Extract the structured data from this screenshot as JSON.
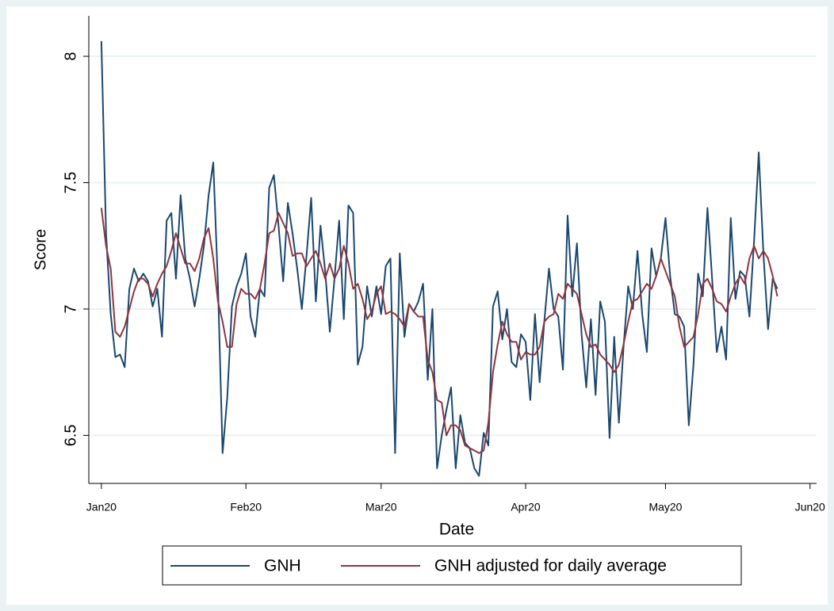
{
  "chart_data": {
    "type": "line",
    "x_label": "Date",
    "y_label": "Score",
    "x": [
      0,
      1,
      2,
      3,
      4,
      5,
      6,
      7,
      8,
      9,
      10,
      11,
      12,
      13,
      14,
      15,
      16,
      17,
      18,
      19,
      20,
      21,
      22,
      23,
      24,
      25,
      26,
      27,
      28,
      29,
      30,
      31,
      32,
      33,
      34,
      35,
      36,
      37,
      38,
      39,
      40,
      41,
      42,
      43,
      44,
      45,
      46,
      47,
      48,
      49,
      50,
      51,
      52,
      53,
      54,
      55,
      56,
      57,
      58,
      59,
      60,
      61,
      62,
      63,
      64,
      65,
      66,
      67,
      68,
      69,
      70,
      71,
      72,
      73,
      74,
      75,
      76,
      77,
      78,
      79,
      80,
      81,
      82,
      83,
      84,
      85,
      86,
      87,
      88,
      89,
      90,
      91,
      92,
      93,
      94,
      95,
      96,
      97,
      98,
      99,
      100,
      101,
      102,
      103,
      104,
      105,
      106,
      107,
      108,
      109,
      110,
      111,
      112,
      113,
      114,
      115,
      116,
      117,
      118,
      119,
      120,
      121,
      122,
      123,
      124,
      125,
      126,
      127,
      128,
      129,
      130,
      131,
      132,
      133,
      134,
      135,
      136,
      137,
      138,
      139,
      140,
      141,
      142,
      143,
      144,
      145
    ],
    "series": [
      {
        "name": "GNH",
        "color": "#1a476f",
        "values": [
          8.06,
          7.3,
          6.98,
          6.81,
          6.82,
          6.77,
          7.08,
          7.16,
          7.11,
          7.14,
          7.11,
          7.01,
          7.08,
          6.89,
          7.35,
          7.38,
          7.12,
          7.45,
          7.2,
          7.12,
          7.01,
          7.12,
          7.25,
          7.45,
          7.58,
          7.1,
          6.43,
          6.65,
          7.01,
          7.09,
          7.14,
          7.22,
          6.97,
          6.89,
          7.08,
          7.05,
          7.48,
          7.53,
          7.33,
          7.11,
          7.42,
          7.3,
          7.16,
          7.0,
          7.21,
          7.44,
          7.03,
          7.33,
          7.15,
          6.91,
          7.12,
          7.35,
          6.96,
          7.41,
          7.38,
          6.78,
          6.85,
          7.09,
          6.97,
          7.09,
          6.98,
          7.17,
          7.2,
          6.43,
          7.22,
          6.89,
          7.02,
          6.99,
          7.03,
          7.1,
          6.72,
          7.0,
          6.37,
          6.5,
          6.6,
          6.69,
          6.37,
          6.58,
          6.47,
          6.45,
          6.37,
          6.34,
          6.51,
          6.46,
          7.01,
          7.07,
          6.88,
          7.0,
          6.79,
          6.77,
          6.9,
          6.87,
          6.64,
          6.98,
          6.71,
          6.95,
          7.16,
          7.0,
          6.97,
          6.76,
          7.37,
          7.05,
          7.26,
          6.9,
          6.69,
          6.96,
          6.66,
          7.03,
          6.95,
          6.49,
          6.89,
          6.55,
          6.85,
          7.09,
          7.0,
          7.23,
          6.98,
          6.83,
          7.24,
          7.13,
          7.2,
          7.36,
          7.13,
          6.98,
          6.97,
          6.93,
          6.54,
          6.78,
          7.14,
          7.05,
          7.4,
          7.12,
          6.83,
          6.93,
          6.8,
          7.36,
          7.04,
          7.15,
          7.13,
          6.97,
          7.27,
          7.62,
          7.22,
          6.92,
          7.12,
          7.08
        ]
      },
      {
        "name": "GNH adjusted for daily average",
        "color": "#90353b",
        "values": [
          7.4,
          7.25,
          7.16,
          6.91,
          6.89,
          6.93,
          7.0,
          7.07,
          7.12,
          7.12,
          7.1,
          7.05,
          7.1,
          7.14,
          7.17,
          7.23,
          7.3,
          7.24,
          7.18,
          7.18,
          7.15,
          7.2,
          7.28,
          7.32,
          7.2,
          7.03,
          6.95,
          6.85,
          6.85,
          7.02,
          7.08,
          7.06,
          7.06,
          7.04,
          7.08,
          7.18,
          7.3,
          7.31,
          7.38,
          7.34,
          7.3,
          7.21,
          7.22,
          7.22,
          7.17,
          7.2,
          7.23,
          7.18,
          7.12,
          7.18,
          7.12,
          7.16,
          7.25,
          7.18,
          7.08,
          7.1,
          7.04,
          6.96,
          6.99,
          7.06,
          7.09,
          6.98,
          6.99,
          6.98,
          6.96,
          6.93,
          7.02,
          6.99,
          6.97,
          6.97,
          6.8,
          6.75,
          6.64,
          6.63,
          6.5,
          6.54,
          6.54,
          6.52,
          6.46,
          6.45,
          6.44,
          6.43,
          6.44,
          6.55,
          6.75,
          6.86,
          6.95,
          6.9,
          6.87,
          6.87,
          6.8,
          6.83,
          6.82,
          6.82,
          6.85,
          6.95,
          6.97,
          6.98,
          7.06,
          7.04,
          7.1,
          7.08,
          7.06,
          6.98,
          6.9,
          6.85,
          6.86,
          6.82,
          6.8,
          6.78,
          6.75,
          6.78,
          6.86,
          6.95,
          7.03,
          7.04,
          7.07,
          7.1,
          7.08,
          7.13,
          7.2,
          7.15,
          7.1,
          7.05,
          6.93,
          6.85,
          6.87,
          6.89,
          6.98,
          7.1,
          7.12,
          7.08,
          7.03,
          7.02,
          6.99,
          7.05,
          7.1,
          7.13,
          7.1,
          7.2,
          7.25,
          7.2,
          7.23,
          7.2,
          7.13,
          7.05
        ]
      }
    ],
    "xlim": [
      -2.7,
      153.4
    ],
    "xticks": [
      {
        "value": 0,
        "label": "Jan20"
      },
      {
        "value": 31,
        "label": "Feb20"
      },
      {
        "value": 60,
        "label": "Mar20"
      },
      {
        "value": 91,
        "label": "Apr20"
      },
      {
        "value": 121,
        "label": "May20"
      },
      {
        "value": 152,
        "label": "Jun20"
      }
    ],
    "ylim": [
      6.31,
      8.16
    ],
    "yticks": [
      {
        "value": 6.5,
        "label": "6.5"
      },
      7,
      {
        "value": 7.5,
        "label": "7.5"
      },
      8
    ],
    "grid": true,
    "legend": "bottom"
  }
}
